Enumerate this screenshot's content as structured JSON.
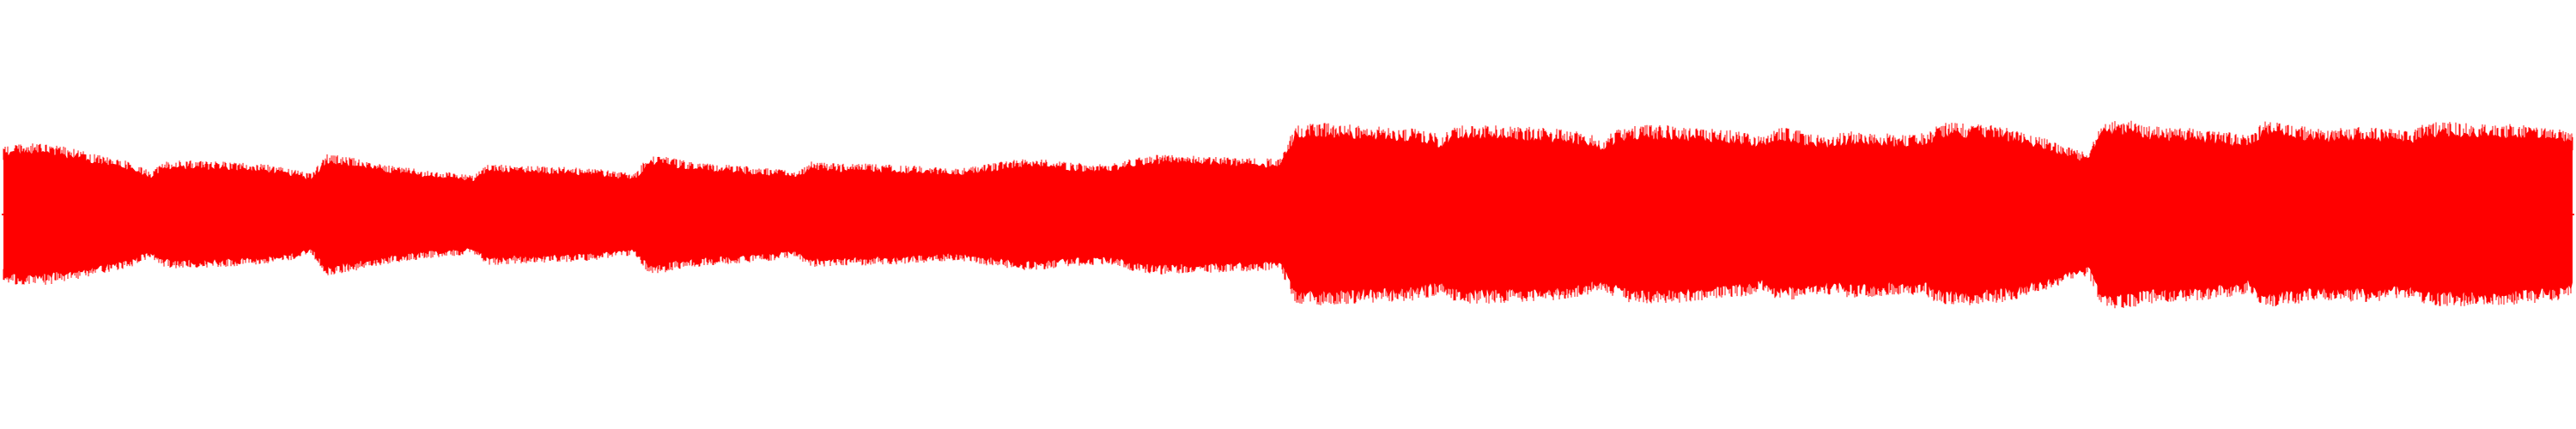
{
  "waveform": {
    "color": "#ff0000",
    "background": "#ffffff",
    "amplitude_envelope": [
      0.68,
      0.69,
      0.7,
      0.69,
      0.67,
      0.64,
      0.6,
      0.57,
      0.54,
      0.5,
      0.42,
      0.52,
      0.53,
      0.53,
      0.52,
      0.52,
      0.51,
      0.5,
      0.49,
      0.47,
      0.44,
      0.4,
      0.6,
      0.58,
      0.55,
      0.52,
      0.49,
      0.47,
      0.45,
      0.43,
      0.42,
      0.41,
      0.38,
      0.5,
      0.49,
      0.48,
      0.48,
      0.47,
      0.47,
      0.46,
      0.45,
      0.44,
      0.42,
      0.4,
      0.59,
      0.57,
      0.54,
      0.52,
      0.5,
      0.49,
      0.48,
      0.47,
      0.46,
      0.44,
      0.42,
      0.52,
      0.51,
      0.5,
      0.5,
      0.5,
      0.49,
      0.49,
      0.48,
      0.47,
      0.46,
      0.45,
      0.48,
      0.5,
      0.52,
      0.54,
      0.55,
      0.54,
      0.52,
      0.51,
      0.5,
      0.5,
      0.51,
      0.56,
      0.58,
      0.59,
      0.58,
      0.58,
      0.57,
      0.57,
      0.56,
      0.56,
      0.55,
      0.55,
      0.88,
      0.89,
      0.9,
      0.89,
      0.88,
      0.87,
      0.86,
      0.86,
      0.85,
      0.82,
      0.78,
      0.87,
      0.88,
      0.88,
      0.87,
      0.86,
      0.86,
      0.85,
      0.84,
      0.82,
      0.79,
      0.75,
      0.84,
      0.87,
      0.88,
      0.88,
      0.87,
      0.86,
      0.85,
      0.84,
      0.82,
      0.8,
      0.76,
      0.86,
      0.84,
      0.79,
      0.78,
      0.8,
      0.82,
      0.81,
      0.8,
      0.79,
      0.79,
      0.8,
      0.9,
      0.9,
      0.89,
      0.88,
      0.87,
      0.84,
      0.8,
      0.75,
      0.7,
      0.65,
      0.6,
      0.92,
      0.93,
      0.92,
      0.88,
      0.86,
      0.86,
      0.85,
      0.84,
      0.82,
      0.8,
      0.77,
      0.92,
      0.91,
      0.88,
      0.86,
      0.85,
      0.85,
      0.86,
      0.86,
      0.85,
      0.84,
      0.82,
      0.9,
      0.91,
      0.91,
      0.9,
      0.9,
      0.89,
      0.89,
      0.88,
      0.87,
      0.84,
      0.8
    ]
  }
}
